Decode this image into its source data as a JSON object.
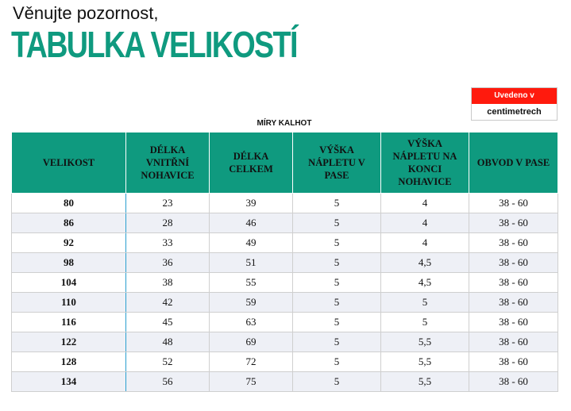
{
  "header": {
    "intro": "Věnujte pozornost,",
    "title": "TABULKA VELIKOSTÍ"
  },
  "units": {
    "label": "Uvedeno v",
    "value": "centimetrech"
  },
  "table": {
    "caption": "MÍRY KALHOT",
    "columns": [
      "VELIKOST",
      "DÉLKA VNITŘNÍ NOHAVICE",
      "DÉLKA CELKEM",
      "VÝŠKA NÁPLETU V PASE",
      "VÝŠKA NÁPLETU NA KONCI NOHAVICE",
      "OBVOD V PASE"
    ],
    "rows": [
      [
        "80",
        "23",
        "39",
        "5",
        "4",
        "38 - 60"
      ],
      [
        "86",
        "28",
        "46",
        "5",
        "4",
        "38 - 60"
      ],
      [
        "92",
        "33",
        "49",
        "5",
        "4",
        "38 - 60"
      ],
      [
        "98",
        "36",
        "51",
        "5",
        "4,5",
        "38 - 60"
      ],
      [
        "104",
        "38",
        "55",
        "5",
        "4,5",
        "38 - 60"
      ],
      [
        "110",
        "42",
        "59",
        "5",
        "5",
        "38 - 60"
      ],
      [
        "116",
        "45",
        "63",
        "5",
        "5",
        "38 - 60"
      ],
      [
        "122",
        "48",
        "69",
        "5",
        "5,5",
        "38 - 60"
      ],
      [
        "128",
        "52",
        "72",
        "5",
        "5,5",
        "38 - 60"
      ],
      [
        "134",
        "56",
        "75",
        "5",
        "5,5",
        "38 - 60"
      ]
    ]
  },
  "colors": {
    "accent": "#0f9a7f",
    "units_label_bg": "#ff1a0d",
    "row_alt_bg": "#eef0f6"
  }
}
